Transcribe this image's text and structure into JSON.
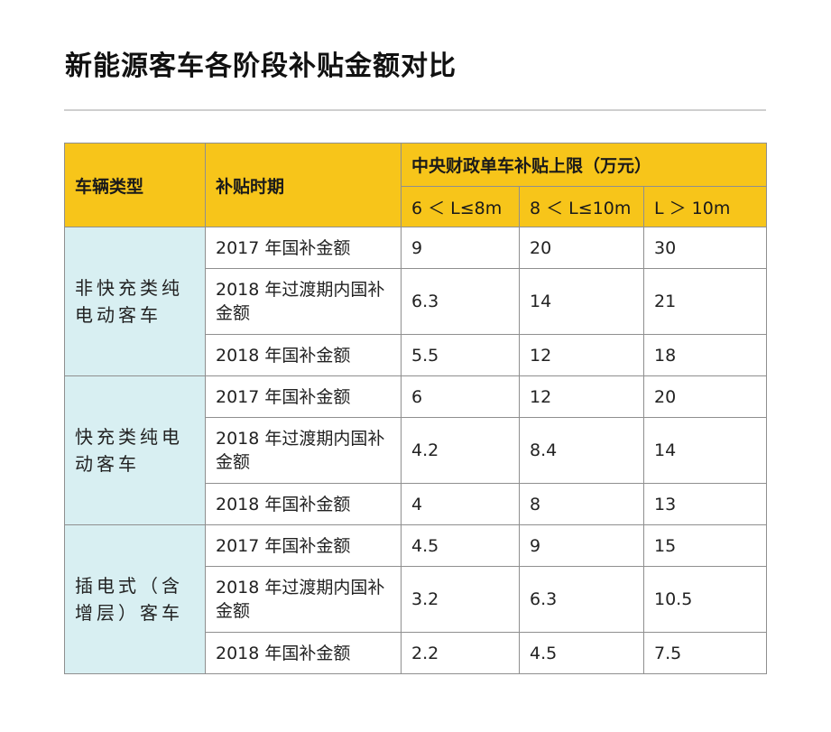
{
  "title": "新能源客车各阶段补贴金额对比",
  "table": {
    "headers": {
      "vehicle_type": "车辆类型",
      "period": "补贴时期",
      "cap_group": "中央财政单车补贴上限（万元）",
      "col_a": "6 ＜ L≤8m",
      "col_b": "8 ＜ L≤10m",
      "col_c": "L ＞ 10m"
    },
    "groups": [
      {
        "type": "非快充类纯电动客车",
        "rows": [
          {
            "period": "2017 年国补金额",
            "values": [
              "9",
              "20",
              "30"
            ]
          },
          {
            "period": "2018 年过渡期内国补金额",
            "values": [
              "6.3",
              "14",
              "21"
            ]
          },
          {
            "period": "2018 年国补金额",
            "values": [
              "5.5",
              "12",
              "18"
            ]
          }
        ]
      },
      {
        "type": "快充类纯电动客车",
        "rows": [
          {
            "period": "2017 年国补金额",
            "values": [
              "6",
              "12",
              "20"
            ]
          },
          {
            "period": "2018 年过渡期内国补金额",
            "values": [
              "4.2",
              "8.4",
              "14"
            ]
          },
          {
            "period": "2018 年国补金额",
            "values": [
              "4",
              "8",
              "13"
            ]
          }
        ]
      },
      {
        "type": "插电式（含增层）客车",
        "rows": [
          {
            "period": "2017 年国补金额",
            "values": [
              "4.5",
              "9",
              "15"
            ]
          },
          {
            "period": "2018 年过渡期内国补金额",
            "values": [
              "3.2",
              "6.3",
              "10.5"
            ]
          },
          {
            "period": "2018 年国补金额",
            "values": [
              "2.2",
              "4.5",
              "7.5"
            ]
          }
        ]
      }
    ]
  }
}
